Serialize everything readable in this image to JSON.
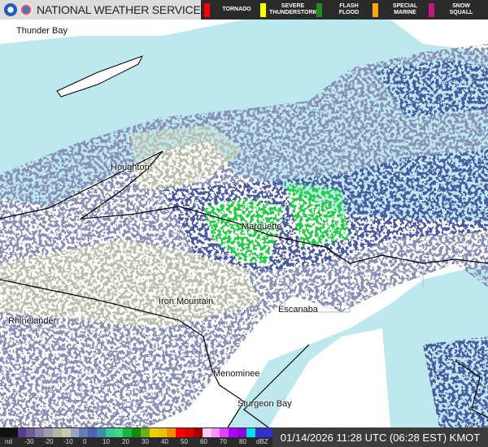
{
  "header": {
    "title": "NATIONAL WEATHER SERVICE",
    "warnings": [
      {
        "label": "TORNADO",
        "color": "#ff0000"
      },
      {
        "label": "SEVERE\nTHUNDERSTORM",
        "color": "#ffff00"
      },
      {
        "label": "FLASH\nFLOOD",
        "color": "#228b22"
      },
      {
        "label": "SPECIAL\nMARINE",
        "color": "#ffa500"
      },
      {
        "label": "SNOW\nSQUALL",
        "color": "#c71585"
      }
    ]
  },
  "map": {
    "cities": [
      "Thunder Bay",
      "Houghton",
      "Marquette",
      "Iron Mountain",
      "Escanaba",
      "Rhinelander",
      "Menominee",
      "Sturgeon Bay"
    ],
    "colors": {
      "water": "#bde8ee",
      "land": "#ffffff",
      "radar_light": "#c8c8a8",
      "radar_mid": "#8890b8",
      "radar_dark": "#4a5aa0",
      "radar_green": "#22cc44"
    }
  },
  "legend": {
    "ticks": [
      "nd",
      "-30",
      "-20",
      "-10",
      "0",
      "10",
      "20",
      "30",
      "40",
      "50",
      "60",
      "70",
      "80",
      "dBZ"
    ],
    "colors": [
      "#111",
      "#111",
      "#5a3c8c",
      "#6c5a9c",
      "#8a7fa8",
      "#9c9cb0",
      "#b4b4a0",
      "#c8c8b0",
      "#9aa4c0",
      "#6a7ab8",
      "#4a64b0",
      "#3c8cac",
      "#3cc8a0",
      "#40d880",
      "#20b040",
      "#108c10",
      "#6cb010",
      "#f0d000",
      "#f0c000",
      "#f09000",
      "#ff0000",
      "#e00000",
      "#a00000",
      "#ffc8f0",
      "#ff90ff",
      "#e040ff",
      "#b000ff",
      "#9000e0",
      "#00e0f0",
      "#3030d0",
      "#3030d0"
    ],
    "unit": "dBZ"
  },
  "timestamp": "01/14/2026 11:28 UTC (06:28 EST) KMOT"
}
